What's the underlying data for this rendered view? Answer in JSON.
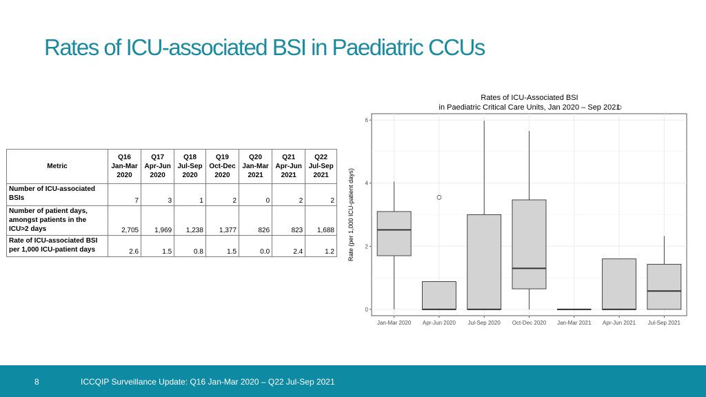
{
  "slide": {
    "title": "Rates of ICU-associated BSI in Paediatric CCUs",
    "footer_page": "8",
    "footer_text": "ICCQIP Surveillance Update: Q16 Jan-Mar 2020 – Q22 Jul-Sep 2021",
    "footer_color": "#0e8aa2",
    "title_color": "#1a8a9e"
  },
  "table": {
    "metric_header": "Metric",
    "columns": [
      {
        "q": "Q16",
        "period": "Jan-Mar",
        "year": "2020"
      },
      {
        "q": "Q17",
        "period": "Apr-Jun",
        "year": "2020"
      },
      {
        "q": "Q18",
        "period": "Jul-Sep",
        "year": "2020"
      },
      {
        "q": "Q19",
        "period": "Oct-Dec",
        "year": "2020"
      },
      {
        "q": "Q20",
        "period": "Jan-Mar",
        "year": "2021"
      },
      {
        "q": "Q21",
        "period": "Apr-Jun",
        "year": "2021"
      },
      {
        "q": "Q22",
        "period": "Jul-Sep",
        "year": "2021"
      }
    ],
    "rows": [
      {
        "label": [
          "Number of ICU-associated",
          "BSIs"
        ],
        "values": [
          "7",
          "3",
          "1",
          "2",
          "0",
          "2",
          "2"
        ]
      },
      {
        "label": [
          "Number of patient days,",
          "amongst patients in the",
          "ICU>2 days"
        ],
        "values": [
          "2,705",
          "1,969",
          "1,238",
          "1,377",
          "826",
          "823",
          "1,688"
        ]
      },
      {
        "label": [
          "Rate of ICU-associated BSI",
          "per 1,000 ICU-patient days"
        ],
        "values": [
          "2.6",
          "1.5",
          "0.8",
          "1.5",
          "0.0",
          "2.4",
          "1.2"
        ]
      }
    ]
  },
  "chart_data": {
    "type": "boxplot",
    "title": "Rates of ICU-Associated BSI",
    "subtitle": "in Paediatric Critical Care Units, Jan 2020 – Sep 2021",
    "xlabel": "",
    "ylabel": "Rate (per 1,000 ICU-patient days)",
    "ylim": [
      -0.2,
      6.2
    ],
    "yticks": [
      0,
      2,
      4,
      6
    ],
    "grid": true,
    "categories": [
      "Jan-Mar 2020",
      "Apr-Jun 2020",
      "Jul-Sep 2020",
      "Oct-Dec 2020",
      "Jan-Mar 2021",
      "Apr-Jun 2021",
      "Jul-Sep 2021"
    ],
    "boxes": [
      {
        "min": 0,
        "q1": 1.7,
        "median": 2.52,
        "q3": 3.1,
        "max": 4.05,
        "outliers": []
      },
      {
        "min": 0,
        "q1": 0,
        "median": 0,
        "q3": 0.88,
        "max": 0.88,
        "outliers": [
          3.55
        ]
      },
      {
        "min": 0,
        "q1": 0,
        "median": 0,
        "q3": 3.0,
        "max": 5.98,
        "outliers": []
      },
      {
        "min": 0,
        "q1": 0.65,
        "median": 1.3,
        "q3": 3.47,
        "max": 5.65,
        "outliers": []
      },
      {
        "min": 0,
        "q1": 0,
        "median": 0,
        "q3": 0,
        "max": 0,
        "outliers": []
      },
      {
        "min": 0,
        "q1": 0,
        "median": 0,
        "q3": 1.6,
        "max": 1.6,
        "outliers": [
          6.4
        ]
      },
      {
        "min": 0,
        "q1": 0,
        "median": 0.58,
        "q3": 1.43,
        "max": 2.32,
        "outliers": []
      }
    ],
    "box_fill": "#d3d3d3",
    "box_stroke": "#333333",
    "grid_color": "#ebebeb"
  }
}
